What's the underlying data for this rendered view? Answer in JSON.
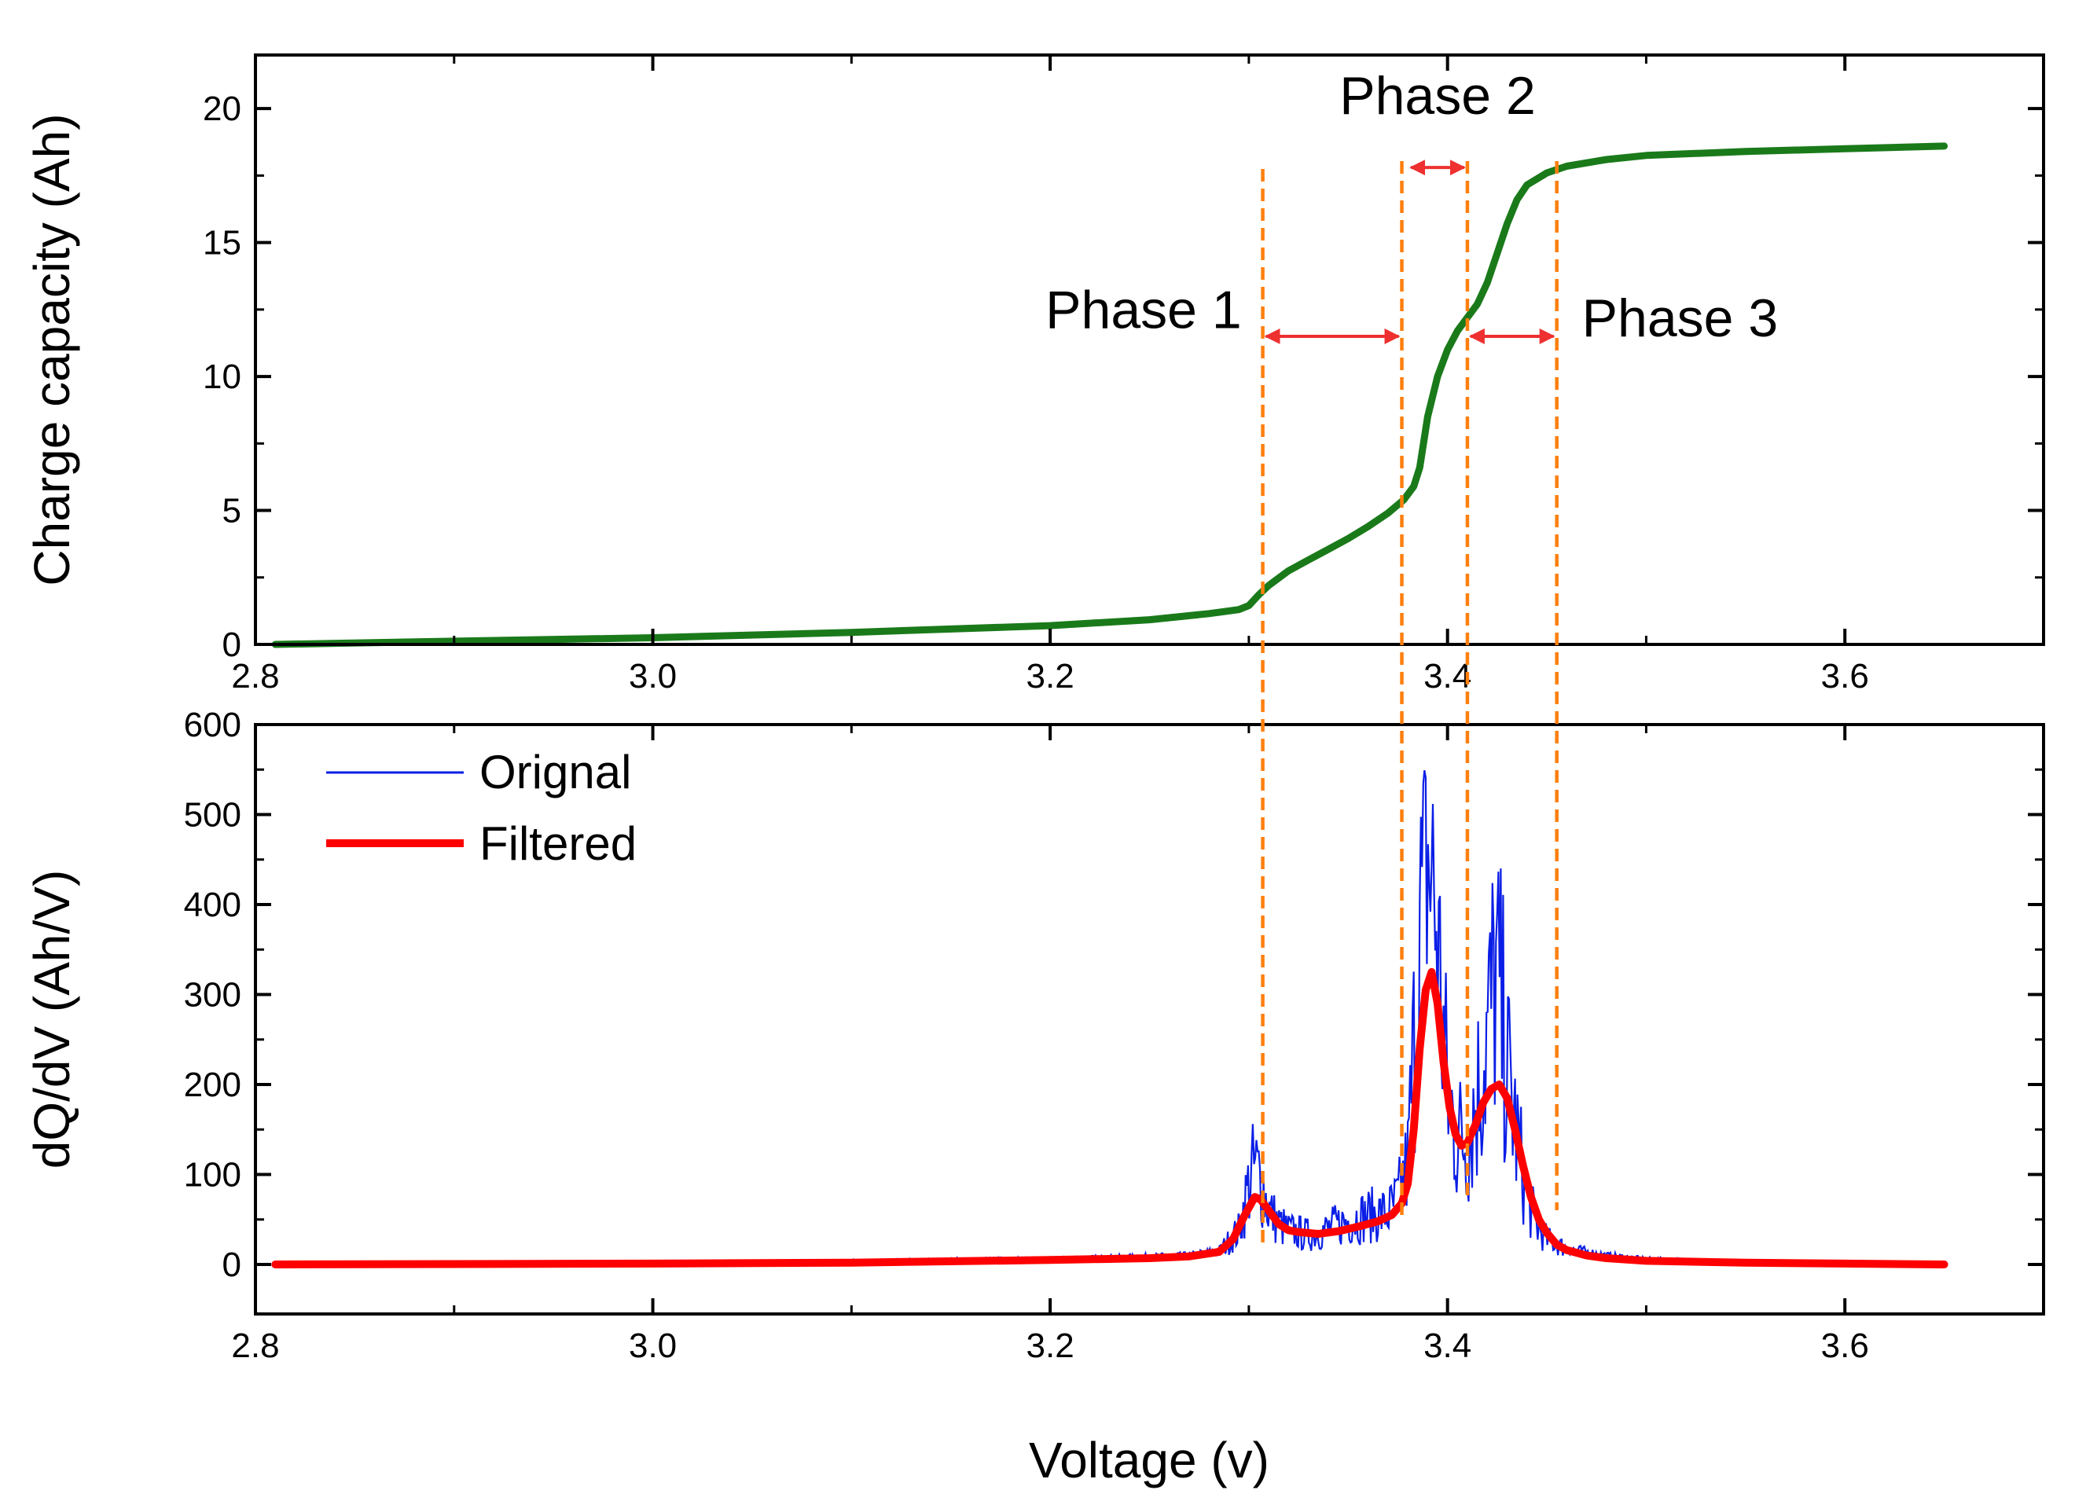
{
  "chart_data": [
    {
      "id": "top",
      "type": "line",
      "title": "",
      "xlabel": "",
      "ylabel": "Charge capacity (Ah)",
      "xlim": [
        2.8,
        3.7
      ],
      "ylim": [
        0,
        22
      ],
      "xticks": [
        "2.8",
        "3.0",
        "3.2",
        "3.4",
        "3.6"
      ],
      "yticks": [
        "0",
        "5",
        "10",
        "15",
        "20"
      ],
      "series": [
        {
          "name": "Charge capacity",
          "color": "#1a7a1a",
          "x": [
            2.81,
            2.9,
            3.0,
            3.1,
            3.2,
            3.25,
            3.28,
            3.295,
            3.3,
            3.305,
            3.31,
            3.32,
            3.33,
            3.34,
            3.35,
            3.36,
            3.37,
            3.378,
            3.383,
            3.386,
            3.39,
            3.395,
            3.4,
            3.405,
            3.41,
            3.415,
            3.42,
            3.425,
            3.43,
            3.435,
            3.44,
            3.45,
            3.46,
            3.48,
            3.5,
            3.55,
            3.6,
            3.65
          ],
          "y": [
            0.0,
            0.12,
            0.25,
            0.45,
            0.7,
            0.92,
            1.15,
            1.3,
            1.45,
            1.85,
            2.2,
            2.75,
            3.15,
            3.55,
            3.95,
            4.4,
            4.9,
            5.4,
            5.9,
            6.6,
            8.5,
            10.0,
            11.0,
            11.7,
            12.2,
            12.7,
            13.5,
            14.6,
            15.7,
            16.6,
            17.15,
            17.6,
            17.85,
            18.1,
            18.25,
            18.4,
            18.5,
            18.6
          ]
        }
      ],
      "annotations": [
        {
          "text": "Phase 1",
          "x": 3.247,
          "y": 11.8
        },
        {
          "text": "Phase 2",
          "x": 3.395,
          "y": 19.8
        },
        {
          "text": "Phase 3",
          "x": 3.517,
          "y": 11.5
        }
      ],
      "phase_arrows": [
        {
          "x1": 3.307,
          "x2": 3.377,
          "y": 11.5
        },
        {
          "x1": 3.38,
          "x2": 3.41,
          "y": 17.8
        },
        {
          "x1": 3.41,
          "x2": 3.455,
          "y": 11.5
        }
      ]
    },
    {
      "id": "bottom",
      "type": "line",
      "title": "",
      "xlabel": "Voltage (v)",
      "ylabel": "dQ/dV (Ah/V)",
      "xlim": [
        2.8,
        3.7
      ],
      "ylim": [
        -55,
        600
      ],
      "xticks": [
        "2.8",
        "3.0",
        "3.2",
        "3.4",
        "3.6"
      ],
      "yticks": [
        "0",
        "100",
        "200",
        "300",
        "400",
        "500",
        "600"
      ],
      "legend": {
        "placement": "top-left",
        "entries": [
          "Orignal",
          "Filtered"
        ]
      },
      "series": [
        {
          "name": "Orignal",
          "color": "#0a1ee6",
          "noisy": true,
          "x": [
            2.81,
            3.0,
            3.2,
            3.27,
            3.285,
            3.295,
            3.3,
            3.303,
            3.306,
            3.31,
            3.315,
            3.32,
            3.33,
            3.34,
            3.35,
            3.36,
            3.37,
            3.375,
            3.38,
            3.383,
            3.386,
            3.39,
            3.393,
            3.396,
            3.4,
            3.405,
            3.41,
            3.415,
            3.42,
            3.424,
            3.427,
            3.43,
            3.435,
            3.44,
            3.445,
            3.45,
            3.46,
            3.48,
            3.5,
            3.55,
            3.6,
            3.65
          ],
          "y": [
            0,
            2,
            6,
            10,
            15,
            40,
            95,
            115,
            100,
            65,
            48,
            40,
            35,
            42,
            52,
            58,
            60,
            75,
            120,
            250,
            420,
            520,
            480,
            340,
            200,
            150,
            150,
            200,
            270,
            340,
            300,
            230,
            150,
            80,
            45,
            30,
            18,
            10,
            6,
            3,
            2,
            1
          ]
        },
        {
          "name": "Filtered",
          "color": "#ff0000",
          "x": [
            2.81,
            3.0,
            3.1,
            3.2,
            3.25,
            3.27,
            3.285,
            3.292,
            3.298,
            3.303,
            3.306,
            3.31,
            3.315,
            3.32,
            3.325,
            3.335,
            3.345,
            3.355,
            3.365,
            3.372,
            3.377,
            3.38,
            3.383,
            3.386,
            3.389,
            3.392,
            3.395,
            3.398,
            3.401,
            3.404,
            3.407,
            3.41,
            3.414,
            3.418,
            3.422,
            3.426,
            3.43,
            3.434,
            3.438,
            3.442,
            3.446,
            3.45,
            3.455,
            3.46,
            3.47,
            3.48,
            3.5,
            3.55,
            3.6,
            3.65
          ],
          "y": [
            0,
            1,
            2,
            5,
            7,
            9,
            14,
            28,
            55,
            75,
            72,
            60,
            45,
            38,
            36,
            34,
            37,
            42,
            48,
            55,
            68,
            90,
            150,
            240,
            305,
            325,
            290,
            225,
            175,
            145,
            132,
            135,
            155,
            180,
            195,
            200,
            185,
            150,
            110,
            75,
            50,
            35,
            22,
            16,
            10,
            7,
            4,
            2,
            1,
            0
          ]
        }
      ]
    }
  ],
  "phase_boundaries": [
    3.307,
    3.377,
    3.41,
    3.455
  ]
}
